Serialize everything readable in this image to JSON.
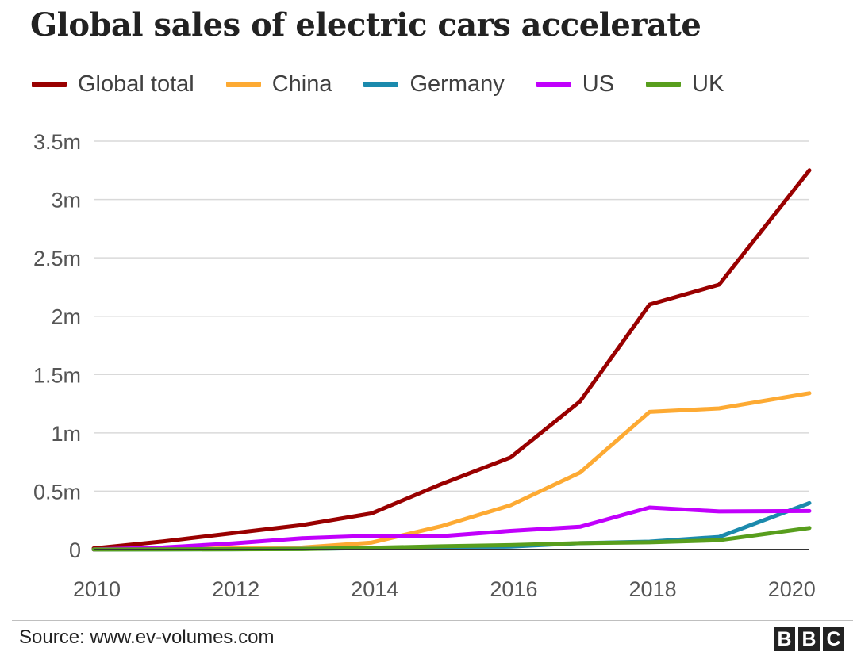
{
  "header": {
    "title": "Global sales of electric cars accelerate"
  },
  "footer": {
    "source": "Source: www.ev-volumes.com"
  },
  "brand": {
    "letters": [
      "B",
      "B",
      "C"
    ]
  },
  "chart_data": {
    "type": "line",
    "title": "Global sales of electric cars accelerate",
    "xlabel": "",
    "ylabel": "",
    "x": [
      2010,
      2011,
      2012,
      2013,
      2014,
      2015,
      2016,
      2017,
      2018,
      2019,
      2020
    ],
    "xlim": [
      2010,
      2020.3
    ],
    "ylim": [
      0,
      3500000
    ],
    "x_ticks": [
      2010,
      2012,
      2014,
      2016,
      2018,
      2020
    ],
    "x_tick_labels": [
      "2010",
      "2012",
      "2014",
      "2016",
      "2018",
      "2020"
    ],
    "y_ticks": [
      0,
      500000,
      1000000,
      1500000,
      2000000,
      2500000,
      3000000,
      3500000
    ],
    "y_tick_labels": [
      "0",
      "0.5m",
      "1m",
      "1.5m",
      "2m",
      "2.5m",
      "3m",
      "3.5m"
    ],
    "grid": "horizontal",
    "legend_position": "top",
    "series": [
      {
        "name": "Global total",
        "color": "#990000",
        "x": [
          2010,
          2011,
          2012,
          2013,
          2014,
          2015,
          2016,
          2017,
          2018,
          2019,
          2020.3
        ],
        "values": [
          10000,
          70000,
          140000,
          210000,
          310000,
          560000,
          790000,
          1270000,
          2100000,
          2270000,
          3250000
        ]
      },
      {
        "name": "China",
        "color": "#fdaa33",
        "x": [
          2010,
          2011,
          2012,
          2013,
          2014,
          2015,
          2016,
          2017,
          2018,
          2019,
          2020.3
        ],
        "values": [
          1000,
          5000,
          10000,
          18000,
          60000,
          200000,
          380000,
          660000,
          1180000,
          1210000,
          1340000
        ]
      },
      {
        "name": "Germany",
        "color": "#1b8aad",
        "x": [
          2010,
          2011,
          2012,
          2013,
          2014,
          2015,
          2016,
          2017,
          2018,
          2019,
          2020.3
        ],
        "values": [
          500,
          2000,
          3000,
          6000,
          13000,
          24000,
          25000,
          55000,
          68000,
          108000,
          398000
        ]
      },
      {
        "name": "US",
        "color": "#c100fc",
        "x": [
          2010,
          2011,
          2012,
          2013,
          2014,
          2015,
          2016,
          2017,
          2018,
          2019,
          2020.3
        ],
        "values": [
          1000,
          18000,
          53000,
          97000,
          118000,
          115000,
          160000,
          195000,
          360000,
          327000,
          330000
        ]
      },
      {
        "name": "UK",
        "color": "#589e1d",
        "x": [
          2010,
          2011,
          2012,
          2013,
          2014,
          2015,
          2016,
          2017,
          2018,
          2019,
          2020.3
        ],
        "values": [
          500,
          1500,
          3000,
          4000,
          15000,
          28000,
          38000,
          55000,
          62000,
          80000,
          185000
        ]
      }
    ]
  }
}
